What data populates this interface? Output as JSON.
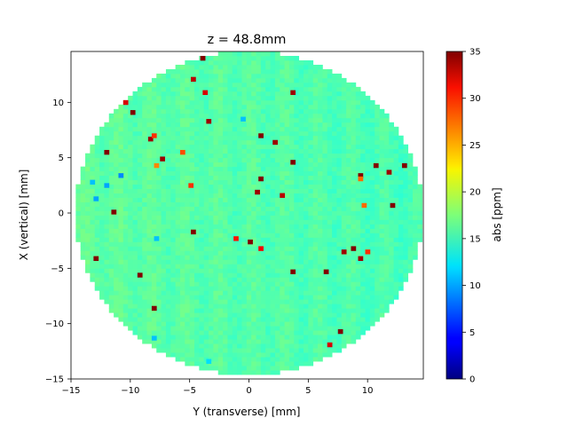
{
  "chart_data": {
    "type": "heatmap",
    "title": "z = 48.8mm",
    "xlabel": "Y (transverse) [mm]",
    "ylabel": "X (vertical) [mm]",
    "xlim": [
      -15,
      15
    ],
    "ylim": [
      -15,
      15
    ],
    "x_ticks": [
      -15,
      -10,
      -5,
      0,
      5,
      10
    ],
    "y_ticks": [
      -15,
      -10,
      -5,
      0,
      5,
      10
    ],
    "grid": false,
    "colormap": "jet",
    "aperture": {
      "shape": "circle",
      "center": [
        0,
        0
      ],
      "radius_mm": 14.6
    },
    "pixel_size_mm": 0.4,
    "colorbar": {
      "label": "abs [ppm]",
      "min": 0,
      "max": 35,
      "ticks": [
        0,
        5,
        10,
        15,
        20,
        25,
        30,
        35
      ]
    },
    "background_value_ppm": 16,
    "background_range_ppm": [
      14,
      18
    ],
    "outliers": [
      {
        "y": -3.9,
        "x": 14.0,
        "v": 35
      },
      {
        "y": -4.7,
        "x": 12.1,
        "v": 33
      },
      {
        "y": -3.7,
        "x": 10.9,
        "v": 32
      },
      {
        "y": 3.7,
        "x": 10.9,
        "v": 34
      },
      {
        "y": -10.4,
        "x": 10.0,
        "v": 32
      },
      {
        "y": -9.8,
        "x": 9.1,
        "v": 35
      },
      {
        "y": -3.4,
        "x": 8.3,
        "v": 34
      },
      {
        "y": -0.5,
        "x": 8.5,
        "v": 11
      },
      {
        "y": -8.3,
        "x": 6.7,
        "v": 34
      },
      {
        "y": -8.0,
        "x": 7.0,
        "v": 29
      },
      {
        "y": 1.0,
        "x": 7.0,
        "v": 35
      },
      {
        "y": 2.2,
        "x": 6.4,
        "v": 34
      },
      {
        "y": -12.0,
        "x": 5.5,
        "v": 35
      },
      {
        "y": -5.6,
        "x": 5.5,
        "v": 28
      },
      {
        "y": -7.3,
        "x": 4.9,
        "v": 34
      },
      {
        "y": 3.7,
        "x": 4.6,
        "v": 35
      },
      {
        "y": 10.7,
        "x": 4.3,
        "v": 35
      },
      {
        "y": 13.1,
        "x": 4.3,
        "v": 35
      },
      {
        "y": -7.8,
        "x": 4.3,
        "v": 26
      },
      {
        "y": 11.8,
        "x": 3.7,
        "v": 34
      },
      {
        "y": -10.8,
        "x": 3.4,
        "v": 9
      },
      {
        "y": 9.4,
        "x": 3.4,
        "v": 35
      },
      {
        "y": 9.4,
        "x": 3.1,
        "v": 27
      },
      {
        "y": 1.0,
        "x": 3.1,
        "v": 35
      },
      {
        "y": -13.2,
        "x": 2.8,
        "v": 11
      },
      {
        "y": -12.0,
        "x": 2.5,
        "v": 10
      },
      {
        "y": -4.9,
        "x": 2.5,
        "v": 29
      },
      {
        "y": 0.7,
        "x": 1.9,
        "v": 34
      },
      {
        "y": 2.8,
        "x": 1.6,
        "v": 33
      },
      {
        "y": -12.9,
        "x": 1.3,
        "v": 10
      },
      {
        "y": 9.7,
        "x": 0.7,
        "v": 27
      },
      {
        "y": 12.1,
        "x": 0.7,
        "v": 35
      },
      {
        "y": -11.4,
        "x": 0.1,
        "v": 35
      },
      {
        "y": -4.7,
        "x": -1.7,
        "v": 35
      },
      {
        "y": -7.8,
        "x": -2.3,
        "v": 11
      },
      {
        "y": -1.1,
        "x": -2.3,
        "v": 30
      },
      {
        "y": 0.1,
        "x": -2.6,
        "v": 35
      },
      {
        "y": 1.0,
        "x": -3.2,
        "v": 31
      },
      {
        "y": 8.8,
        "x": -3.2,
        "v": 35
      },
      {
        "y": 8.0,
        "x": -3.5,
        "v": 34
      },
      {
        "y": 10.0,
        "x": -3.5,
        "v": 29
      },
      {
        "y": 9.4,
        "x": -4.1,
        "v": 34
      },
      {
        "y": -12.9,
        "x": -4.1,
        "v": 35
      },
      {
        "y": 3.7,
        "x": -5.3,
        "v": 35
      },
      {
        "y": 6.5,
        "x": -5.3,
        "v": 35
      },
      {
        "y": -9.2,
        "x": -5.6,
        "v": 35
      },
      {
        "y": -8.0,
        "x": -8.6,
        "v": 35
      },
      {
        "y": -8.0,
        "x": -11.3,
        "v": 11
      },
      {
        "y": 7.7,
        "x": -10.7,
        "v": 35
      },
      {
        "y": 6.8,
        "x": -11.9,
        "v": 32
      },
      {
        "y": -3.4,
        "x": -13.4,
        "v": 12
      }
    ]
  }
}
